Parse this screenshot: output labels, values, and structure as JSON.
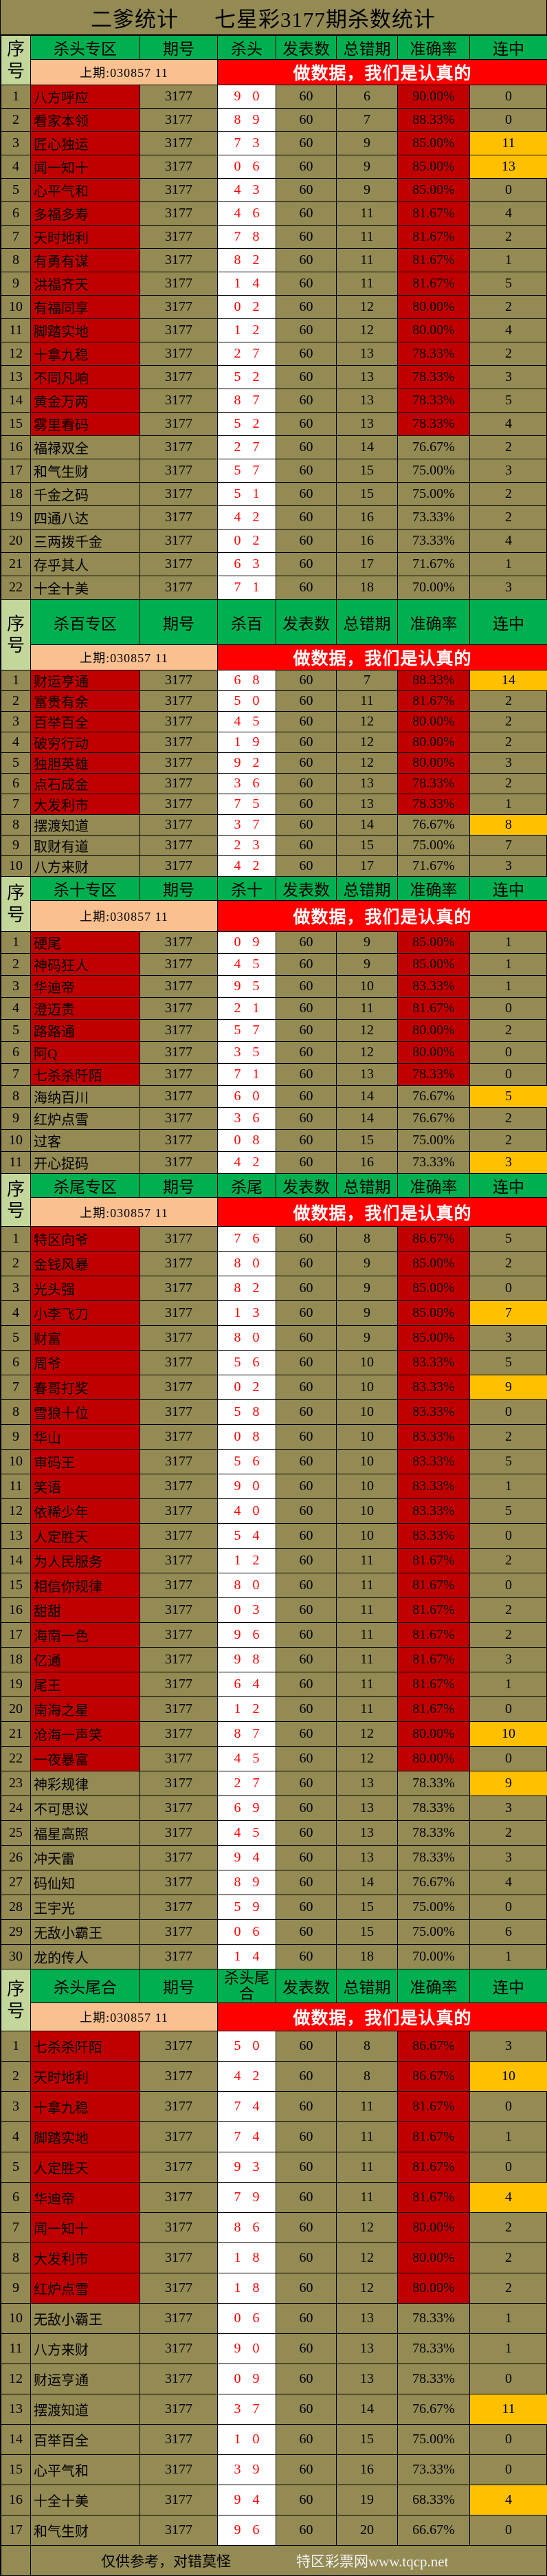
{
  "title": {
    "left": "二爹统计",
    "right": "七星彩3177期杀数统计"
  },
  "colors": {
    "bg": "#948A54",
    "header": "#00B050",
    "seq_header": "#C4D79B",
    "prev": "#FAC090",
    "slogan": "#FF0000",
    "top_rank": "#C00000",
    "kill_text": "#FF0000",
    "streak_hot": "#FFC000"
  },
  "columns": {
    "seq": "序号",
    "period": "期号",
    "published": "发表数",
    "errors": "总错期",
    "accuracy": "准确率",
    "streak": "连中"
  },
  "sections": [
    {
      "zone": "杀头专区",
      "kill": "杀头",
      "prev": "上期:030857 11",
      "slogan": "做数据，我们是认真的",
      "rows": [
        [
          "1",
          "八方呼应",
          "3177",
          "9 0",
          "60",
          "6",
          "90.00%",
          "0",
          1,
          0
        ],
        [
          "2",
          "看家本领",
          "3177",
          "8 9",
          "60",
          "7",
          "88.33%",
          "0",
          1,
          0
        ],
        [
          "3",
          "匠心独运",
          "3177",
          "7 3",
          "60",
          "9",
          "85.00%",
          "11",
          1,
          1
        ],
        [
          "4",
          "闻一知十",
          "3177",
          "0 6",
          "60",
          "9",
          "85.00%",
          "13",
          1,
          1
        ],
        [
          "5",
          "心平气和",
          "3177",
          "4 3",
          "60",
          "9",
          "85.00%",
          "0",
          1,
          0
        ],
        [
          "6",
          "多福多寿",
          "3177",
          "4 6",
          "60",
          "11",
          "81.67%",
          "4",
          1,
          0
        ],
        [
          "7",
          "天时地利",
          "3177",
          "7 8",
          "60",
          "11",
          "81.67%",
          "2",
          1,
          0
        ],
        [
          "8",
          "有勇有谋",
          "3177",
          "8 2",
          "60",
          "11",
          "81.67%",
          "1",
          1,
          0
        ],
        [
          "9",
          "洪福齐天",
          "3177",
          "1 4",
          "60",
          "11",
          "81.67%",
          "5",
          1,
          0
        ],
        [
          "10",
          "有福同享",
          "3177",
          "0 2",
          "60",
          "12",
          "80.00%",
          "2",
          1,
          0
        ],
        [
          "11",
          "脚踏实地",
          "3177",
          "1 2",
          "60",
          "12",
          "80.00%",
          "4",
          1,
          0
        ],
        [
          "12",
          "十拿九稳",
          "3177",
          "2 7",
          "60",
          "13",
          "78.33%",
          "2",
          1,
          0
        ],
        [
          "13",
          "不同凡响",
          "3177",
          "5 2",
          "60",
          "13",
          "78.33%",
          "3",
          1,
          0
        ],
        [
          "14",
          "黄金万两",
          "3177",
          "8 7",
          "60",
          "13",
          "78.33%",
          "5",
          1,
          0
        ],
        [
          "15",
          "雾里看码",
          "3177",
          "5 2",
          "60",
          "13",
          "78.33%",
          "4",
          1,
          0
        ],
        [
          "16",
          "福禄双全",
          "3177",
          "2 7",
          "60",
          "14",
          "76.67%",
          "2",
          0,
          0
        ],
        [
          "17",
          "和气生财",
          "3177",
          "5 7",
          "60",
          "15",
          "75.00%",
          "3",
          0,
          0
        ],
        [
          "18",
          "千金之码",
          "3177",
          "5 1",
          "60",
          "15",
          "75.00%",
          "2",
          0,
          0
        ],
        [
          "19",
          "四通八达",
          "3177",
          "4 2",
          "60",
          "16",
          "73.33%",
          "2",
          0,
          0
        ],
        [
          "20",
          "三两拨千金",
          "3177",
          "0 2",
          "60",
          "16",
          "73.33%",
          "4",
          0,
          0
        ],
        [
          "21",
          "存乎其人",
          "3177",
          "6 3",
          "60",
          "17",
          "71.67%",
          "1",
          0,
          0
        ],
        [
          "22",
          "十全十美",
          "3177",
          "7 1",
          "60",
          "18",
          "70.00%",
          "3",
          0,
          0
        ]
      ]
    },
    {
      "zone": "杀百专区",
      "kill": "杀百",
      "prev": "上期:030857 11",
      "slogan": "做数据，我们是认真的",
      "rows": [
        [
          "1",
          "财运亨通",
          "3177",
          "6 8",
          "60",
          "7",
          "88.33%",
          "14",
          1,
          1
        ],
        [
          "2",
          "富贵有余",
          "3177",
          "5 0",
          "60",
          "11",
          "81.67%",
          "2",
          1,
          0
        ],
        [
          "3",
          "百举百全",
          "3177",
          "4 5",
          "60",
          "12",
          "80.00%",
          "2",
          1,
          0
        ],
        [
          "4",
          "破穷行动",
          "3177",
          "1 9",
          "60",
          "12",
          "80.00%",
          "2",
          1,
          0
        ],
        [
          "5",
          "独胆英雄",
          "3177",
          "9 2",
          "60",
          "12",
          "80.00%",
          "3",
          1,
          0
        ],
        [
          "6",
          "点石成金",
          "3177",
          "3 6",
          "60",
          "13",
          "78.33%",
          "2",
          1,
          0
        ],
        [
          "7",
          "大发利市",
          "3177",
          "7 5",
          "60",
          "13",
          "78.33%",
          "1",
          1,
          0
        ],
        [
          "8",
          "摆渡知道",
          "3177",
          "3 7",
          "60",
          "14",
          "76.67%",
          "8",
          0,
          1
        ],
        [
          "9",
          "取财有道",
          "3177",
          "2 3",
          "60",
          "15",
          "75.00%",
          "7",
          0,
          0
        ],
        [
          "10",
          "八方来财",
          "3177",
          "4 2",
          "60",
          "17",
          "71.67%",
          "3",
          0,
          0
        ]
      ]
    },
    {
      "zone": "杀十专区",
      "kill": "杀十",
      "prev": "上期:030857 11",
      "slogan": "做数据，我们是认真的",
      "rows": [
        [
          "1",
          "硬尾",
          "3177",
          "0 9",
          "60",
          "9",
          "85.00%",
          "1",
          1,
          0
        ],
        [
          "2",
          "神码狂人",
          "3177",
          "4 5",
          "60",
          "9",
          "85.00%",
          "1",
          1,
          0
        ],
        [
          "3",
          "华迪帝",
          "3177",
          "9 5",
          "60",
          "10",
          "83.33%",
          "1",
          1,
          0
        ],
        [
          "4",
          "澄迈贵",
          "3177",
          "2 1",
          "60",
          "11",
          "81.67%",
          "0",
          1,
          0
        ],
        [
          "5",
          "路路通",
          "3177",
          "5 7",
          "60",
          "12",
          "80.00%",
          "2",
          1,
          0
        ],
        [
          "6",
          "阿Q",
          "3177",
          "3 5",
          "60",
          "12",
          "80.00%",
          "0",
          1,
          0
        ],
        [
          "7",
          "七杀杀阡陌",
          "3177",
          "7 1",
          "60",
          "13",
          "78.33%",
          "0",
          1,
          0
        ],
        [
          "8",
          "海纳百川",
          "3177",
          "6 0",
          "60",
          "14",
          "76.67%",
          "5",
          0,
          1
        ],
        [
          "9",
          "红炉点雪",
          "3177",
          "3 6",
          "60",
          "14",
          "76.67%",
          "2",
          0,
          0
        ],
        [
          "10",
          "过客",
          "3177",
          "0 8",
          "60",
          "15",
          "75.00%",
          "2",
          0,
          0
        ],
        [
          "11",
          "开心捉码",
          "3177",
          "4 2",
          "60",
          "16",
          "73.33%",
          "3",
          0,
          1
        ]
      ]
    },
    {
      "zone": "杀尾专区",
      "kill": "杀尾",
      "prev": "上期:030857 11",
      "slogan": "做数据，我们是认真的",
      "rows": [
        [
          "1",
          "特区向爷",
          "3177",
          "7 6",
          "60",
          "8",
          "86.67%",
          "5",
          1,
          0
        ],
        [
          "2",
          "金钱风暴",
          "3177",
          "8 0",
          "60",
          "9",
          "85.00%",
          "2",
          1,
          0
        ],
        [
          "3",
          "光头强",
          "3177",
          "8 2",
          "60",
          "9",
          "85.00%",
          "0",
          1,
          0
        ],
        [
          "4",
          "小李飞刀",
          "3177",
          "1 3",
          "60",
          "9",
          "85.00%",
          "7",
          1,
          1
        ],
        [
          "5",
          "财富",
          "3177",
          "8 0",
          "60",
          "9",
          "85.00%",
          "3",
          1,
          0
        ],
        [
          "6",
          "周爷",
          "3177",
          "5 6",
          "60",
          "10",
          "83.33%",
          "5",
          1,
          0
        ],
        [
          "7",
          "春哥打奖",
          "3177",
          "0 2",
          "60",
          "10",
          "83.33%",
          "9",
          1,
          1
        ],
        [
          "8",
          "雪狼十位",
          "3177",
          "5 8",
          "60",
          "10",
          "83.33%",
          "0",
          1,
          0
        ],
        [
          "9",
          "华山",
          "3177",
          "0 8",
          "60",
          "10",
          "83.33%",
          "2",
          1,
          0
        ],
        [
          "10",
          "审码王",
          "3177",
          "5 6",
          "60",
          "10",
          "83.33%",
          "5",
          1,
          0
        ],
        [
          "11",
          "笑语",
          "3177",
          "9 0",
          "60",
          "10",
          "83.33%",
          "1",
          1,
          0
        ],
        [
          "12",
          "依稀少年",
          "3177",
          "4 0",
          "60",
          "10",
          "83.33%",
          "5",
          1,
          0
        ],
        [
          "13",
          "人定胜天",
          "3177",
          "5 4",
          "60",
          "10",
          "83.33%",
          "0",
          1,
          0
        ],
        [
          "14",
          "为人民服务",
          "3177",
          "1 2",
          "60",
          "11",
          "81.67%",
          "2",
          1,
          0
        ],
        [
          "15",
          "相信你规律",
          "3177",
          "8 0",
          "60",
          "11",
          "81.67%",
          "0",
          1,
          0
        ],
        [
          "16",
          "甜甜",
          "3177",
          "0 3",
          "60",
          "11",
          "81.67%",
          "2",
          1,
          0
        ],
        [
          "17",
          "海南一色",
          "3177",
          "9 6",
          "60",
          "11",
          "81.67%",
          "2",
          1,
          0
        ],
        [
          "18",
          "亿通",
          "3177",
          "9 8",
          "60",
          "11",
          "81.67%",
          "3",
          1,
          0
        ],
        [
          "19",
          "尾王",
          "3177",
          "6 4",
          "60",
          "11",
          "81.67%",
          "1",
          1,
          0
        ],
        [
          "20",
          "南海之星",
          "3177",
          "1 2",
          "60",
          "11",
          "81.67%",
          "0",
          1,
          0
        ],
        [
          "21",
          "沧海一声笑",
          "3177",
          "8 7",
          "60",
          "12",
          "80.00%",
          "10",
          1,
          1
        ],
        [
          "22",
          "一夜暴富",
          "3177",
          "4 5",
          "60",
          "12",
          "80.00%",
          "0",
          1,
          0
        ],
        [
          "23",
          "神彩规律",
          "3177",
          "2 7",
          "60",
          "13",
          "78.33%",
          "9",
          0,
          1
        ],
        [
          "24",
          "不可思议",
          "3177",
          "6 9",
          "60",
          "13",
          "78.33%",
          "3",
          0,
          0
        ],
        [
          "25",
          "福星高照",
          "3177",
          "4 5",
          "60",
          "13",
          "78.33%",
          "2",
          0,
          0
        ],
        [
          "26",
          "冲天雷",
          "3177",
          "9 4",
          "60",
          "13",
          "78.33%",
          "3",
          0,
          0
        ],
        [
          "27",
          "码仙知",
          "3177",
          "8 9",
          "60",
          "14",
          "76.67%",
          "4",
          0,
          0
        ],
        [
          "28",
          "王宇光",
          "3177",
          "5 9",
          "60",
          "15",
          "75.00%",
          "0",
          0,
          0
        ],
        [
          "29",
          "无敌小霸王",
          "3177",
          "0 6",
          "60",
          "15",
          "75.00%",
          "6",
          0,
          0
        ],
        [
          "30",
          "龙的传人",
          "3177",
          "1 4",
          "60",
          "18",
          "70.00%",
          "1",
          0,
          0
        ]
      ]
    },
    {
      "zone": "杀头尾合",
      "kill": "杀头尾合",
      "prev": "上期:030857 11",
      "slogan": "做数据，我们是认真的",
      "rows": [
        [
          "1",
          "七杀杀阡陌",
          "3177",
          "5 0",
          "60",
          "8",
          "86.67%",
          "3",
          1,
          0
        ],
        [
          "2",
          "天时地利",
          "3177",
          "4 2",
          "60",
          "8",
          "86.67%",
          "10",
          1,
          1
        ],
        [
          "3",
          "十拿九稳",
          "3177",
          "7 4",
          "60",
          "11",
          "81.67%",
          "0",
          1,
          0
        ],
        [
          "4",
          "脚踏实地",
          "3177",
          "7 4",
          "60",
          "11",
          "81.67%",
          "1",
          1,
          0
        ],
        [
          "5",
          "人定胜天",
          "3177",
          "9 3",
          "60",
          "11",
          "81.67%",
          "0",
          1,
          0
        ],
        [
          "6",
          "华迪帝",
          "3177",
          "7 9",
          "60",
          "11",
          "81.67%",
          "4",
          1,
          1
        ],
        [
          "7",
          "闻一知十",
          "3177",
          "8 6",
          "60",
          "12",
          "80.00%",
          "2",
          1,
          0
        ],
        [
          "8",
          "大发利市",
          "3177",
          "1 8",
          "60",
          "12",
          "80.00%",
          "2",
          1,
          0
        ],
        [
          "9",
          "红炉点雪",
          "3177",
          "1 8",
          "60",
          "12",
          "80.00%",
          "2",
          1,
          0
        ],
        [
          "10",
          "无敌小霸王",
          "3177",
          "0 6",
          "60",
          "13",
          "78.33%",
          "1",
          0,
          0
        ],
        [
          "11",
          "八方来财",
          "3177",
          "9 0",
          "60",
          "13",
          "78.33%",
          "1",
          0,
          0
        ],
        [
          "12",
          "财运亨通",
          "3177",
          "0 9",
          "60",
          "13",
          "78.33%",
          "0",
          0,
          0
        ],
        [
          "13",
          "摆渡知道",
          "3177",
          "3 7",
          "60",
          "14",
          "76.67%",
          "11",
          0,
          1
        ],
        [
          "14",
          "百举百全",
          "3177",
          "1 0",
          "60",
          "15",
          "75.00%",
          "0",
          0,
          0
        ],
        [
          "15",
          "心平气和",
          "3177",
          "3 9",
          "60",
          "16",
          "73.33%",
          "0",
          0,
          0
        ],
        [
          "16",
          "十全十美",
          "3177",
          "9 4",
          "60",
          "19",
          "68.33%",
          "4",
          0,
          1
        ],
        [
          "17",
          "和气生财",
          "3177",
          "9 6",
          "60",
          "20",
          "66.67%",
          "0",
          0,
          0
        ]
      ]
    }
  ],
  "footer": {
    "note": "仅供参考，对错莫怪",
    "site": "特区彩票网www.tqcp.net"
  }
}
